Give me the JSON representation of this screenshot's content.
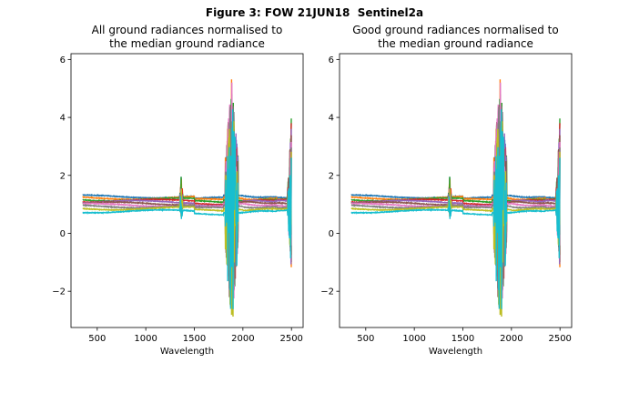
{
  "figure_title": "Figure 3: FOW 21JUN18  Sentinel2a",
  "colors": {
    "series_palette": [
      "#1f77b4",
      "#ff7f0e",
      "#2ca02c",
      "#d62728",
      "#9467bd",
      "#8c564b",
      "#e377c2",
      "#7f7f7f",
      "#bcbd22",
      "#17becf"
    ]
  },
  "chart_data": [
    {
      "type": "line",
      "title": "All ground radiances normalised to\nthe median ground radiance",
      "xlabel": "Wavelength",
      "ylabel": "",
      "xlim": [
        230,
        2620
      ],
      "ylim": [
        -3.25,
        6.2
      ],
      "xticks": [
        500,
        1000,
        1500,
        2000,
        2500
      ],
      "yticks": [
        -2,
        0,
        2,
        4,
        6
      ],
      "ytick_labels": [
        "−2",
        "0",
        "2",
        "4",
        "6"
      ],
      "grid": false,
      "legend": "none",
      "x_range": [
        350,
        2500
      ],
      "series_count": 10,
      "series_baselines": [
        1.27,
        1.22,
        1.17,
        1.12,
        1.08,
        1.03,
        0.98,
        0.93,
        0.86,
        0.76
      ],
      "features": {
        "band_1400_nm": {
          "x": 1365,
          "y_max": 1.7,
          "y_min": 0.45
        },
        "band_1900_nm": {
          "x_start": 1820,
          "x_end": 1950,
          "y_max": 5.8,
          "y_min": -2.85
        },
        "band_2500_nm": {
          "x_start": 2465,
          "x_end": 2500,
          "y_max": 4.8,
          "y_min": -2.0
        }
      }
    },
    {
      "type": "line",
      "title": "Good ground radiances normalised to\nthe median ground radiance",
      "xlabel": "Wavelength",
      "ylabel": "",
      "xlim": [
        230,
        2620
      ],
      "ylim": [
        -3.25,
        6.2
      ],
      "xticks": [
        500,
        1000,
        1500,
        2000,
        2500
      ],
      "yticks": [
        -2,
        0,
        2,
        4,
        6
      ],
      "ytick_labels": [
        "−2",
        "0",
        "2",
        "4",
        "6"
      ],
      "grid": false,
      "legend": "none",
      "x_range": [
        350,
        2500
      ],
      "series_count": 10,
      "series_baselines": [
        1.27,
        1.22,
        1.17,
        1.12,
        1.08,
        1.03,
        0.98,
        0.93,
        0.86,
        0.76
      ],
      "features": {
        "band_1400_nm": {
          "x": 1365,
          "y_max": 1.7,
          "y_min": 0.45
        },
        "band_1900_nm": {
          "x_start": 1820,
          "x_end": 1950,
          "y_max": 5.8,
          "y_min": -2.85
        },
        "band_2500_nm": {
          "x_start": 2465,
          "x_end": 2500,
          "y_max": 4.8,
          "y_min": -2.0
        }
      }
    }
  ]
}
